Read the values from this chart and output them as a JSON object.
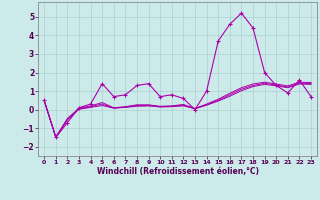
{
  "xlabel": "Windchill (Refroidissement éolien,°C)",
  "background_color": "#cdeaea",
  "grid_color": "#aacfcf",
  "line_color": "#aa00aa",
  "xlim": [
    -0.5,
    23.5
  ],
  "ylim": [
    -2.5,
    5.8
  ],
  "yticks": [
    -2,
    -1,
    0,
    1,
    2,
    3,
    4,
    5
  ],
  "xticks": [
    0,
    1,
    2,
    3,
    4,
    5,
    6,
    7,
    8,
    9,
    10,
    11,
    12,
    13,
    14,
    15,
    16,
    17,
    18,
    19,
    20,
    21,
    22,
    23
  ],
  "main_series": [
    0.5,
    -1.5,
    -0.7,
    0.1,
    0.3,
    1.4,
    0.7,
    0.8,
    1.3,
    1.4,
    0.7,
    0.8,
    0.6,
    0.0,
    1.0,
    3.7,
    4.6,
    5.2,
    4.4,
    2.0,
    1.3,
    0.9,
    1.6,
    0.7
  ],
  "trend_series": [
    [
      0.48,
      -1.48,
      -0.55,
      0.02,
      0.12,
      0.22,
      0.08,
      0.12,
      0.18,
      0.2,
      0.14,
      0.16,
      0.2,
      0.06,
      0.24,
      0.46,
      0.72,
      1.02,
      1.24,
      1.36,
      1.28,
      1.18,
      1.38,
      1.36
    ],
    [
      0.48,
      -1.48,
      -0.52,
      0.04,
      0.16,
      0.3,
      0.08,
      0.14,
      0.22,
      0.22,
      0.16,
      0.18,
      0.24,
      0.04,
      0.26,
      0.5,
      0.8,
      1.1,
      1.3,
      1.42,
      1.32,
      1.22,
      1.42,
      1.4
    ],
    [
      0.48,
      -1.48,
      -0.48,
      0.08,
      0.2,
      0.38,
      0.1,
      0.16,
      0.26,
      0.26,
      0.18,
      0.2,
      0.28,
      0.06,
      0.3,
      0.56,
      0.88,
      1.18,
      1.38,
      1.48,
      1.38,
      1.28,
      1.48,
      1.46
    ]
  ]
}
